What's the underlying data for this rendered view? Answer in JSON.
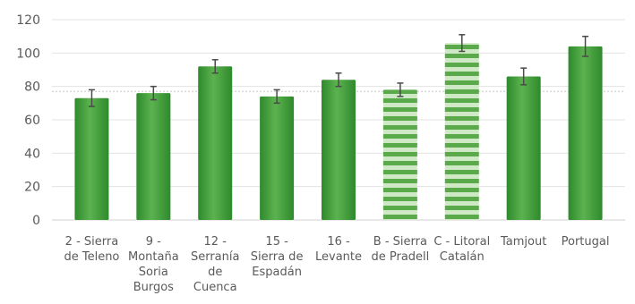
{
  "chart_data": {
    "type": "bar",
    "title": "",
    "xlabel": "",
    "ylabel": "",
    "ylim": [
      0,
      120
    ],
    "yticks": [
      0,
      20,
      40,
      60,
      80,
      100,
      120
    ],
    "grid": true,
    "reference_line": 77,
    "categories": [
      [
        "2 - Sierra",
        "de Teleno"
      ],
      [
        "9 -",
        "Montaña",
        "Soria",
        "Burgos"
      ],
      [
        "12 -",
        "Serranía",
        "de",
        "Cuenca"
      ],
      [
        "15 -",
        "Sierra de",
        "Espadán"
      ],
      [
        "16 -",
        "Levante"
      ],
      [
        "B - Sierra",
        "de Pradell"
      ],
      [
        "C - Litoral",
        "Catalán"
      ],
      [
        "Tamjout"
      ],
      [
        "Portugal"
      ]
    ],
    "values": [
      73,
      76,
      92,
      74,
      84,
      78,
      106,
      86,
      104
    ],
    "errors": [
      5,
      4,
      4,
      4,
      4,
      4,
      5,
      5,
      6
    ],
    "bar_style": [
      "solid",
      "solid",
      "solid",
      "solid",
      "solid",
      "striped",
      "striped",
      "solid",
      "solid"
    ],
    "colors": {
      "bar_dark": "#2e8a2c",
      "bar_mid": "#4faa44",
      "bar_light": "#7cc26f",
      "stripe_light": "#cfe9c6",
      "error_bar": "#4a4a4a"
    }
  }
}
